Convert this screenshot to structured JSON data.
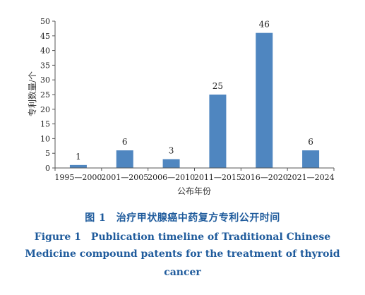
{
  "chart_data": {
    "type": "bar",
    "categories": [
      "1995—2000",
      "2001—2005",
      "2006—2010",
      "2011—2015",
      "2016—2020",
      "2021—2024"
    ],
    "values": [
      1,
      6,
      3,
      25,
      46,
      6
    ],
    "data_labels": [
      "1",
      "6",
      "3",
      "25",
      "46",
      "6"
    ],
    "xlabel": "公布年份",
    "ylabel": "专利数量/个",
    "ylim": [
      0,
      50
    ],
    "yticks": [
      0,
      5,
      10,
      15,
      20,
      25,
      30,
      35,
      40,
      45,
      50
    ],
    "grid": false,
    "legend": "none",
    "bar_color": "#4f86c0"
  },
  "caption": {
    "cn": "图 1　治疗甲状腺癌中药复方专利公开时间",
    "en_line1": "Figure 1　Publication timeline of Traditional Chinese",
    "en_line2": "Medicine compound patents for the treatment of thyroid",
    "en_line3": "cancer"
  }
}
